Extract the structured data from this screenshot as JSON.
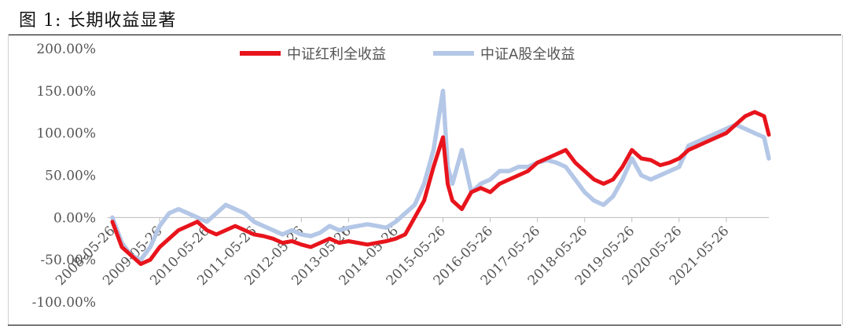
{
  "figure": {
    "title": "图 1:  长期收益显著"
  },
  "chart_data": {
    "type": "line",
    "ylim": [
      -100,
      200
    ],
    "y_ticks": [
      "200.00%",
      "150.00%",
      "100.00%",
      "50.00%",
      "0.00%",
      "-50.00%",
      "-100.00%"
    ],
    "y_tick_values": [
      200,
      150,
      100,
      50,
      0,
      -50,
      -100
    ],
    "x_ticks": [
      "2008-05-26",
      "2009-05-26",
      "2010-05-26",
      "2011-05-26",
      "2012-05-26",
      "2013-05-26",
      "2014-05-26",
      "2015-05-26",
      "2016-05-26",
      "2017-05-26",
      "2018-05-26",
      "2019-05-26",
      "2020-05-26",
      "2021-05-26"
    ],
    "legend_position": "top-center",
    "series": [
      {
        "name": "中证红利全收益",
        "color": "#e8141c",
        "x": [
          2008.4,
          2008.6,
          2008.8,
          2009.0,
          2009.2,
          2009.4,
          2009.6,
          2009.8,
          2010.0,
          2010.2,
          2010.4,
          2010.6,
          2010.8,
          2011.0,
          2011.2,
          2011.4,
          2011.6,
          2011.8,
          2012.0,
          2012.2,
          2012.4,
          2012.6,
          2012.8,
          2013.0,
          2013.2,
          2013.4,
          2013.6,
          2013.8,
          2014.0,
          2014.2,
          2014.4,
          2014.6,
          2014.8,
          2015.0,
          2015.2,
          2015.4,
          2015.5,
          2015.6,
          2015.8,
          2016.0,
          2016.2,
          2016.4,
          2016.6,
          2016.8,
          2017.0,
          2017.2,
          2017.4,
          2017.6,
          2017.8,
          2018.0,
          2018.2,
          2018.4,
          2018.6,
          2018.8,
          2019.0,
          2019.2,
          2019.4,
          2019.6,
          2019.8,
          2020.0,
          2020.2,
          2020.4,
          2020.6,
          2020.8,
          2021.0,
          2021.2,
          2021.4,
          2021.6,
          2021.8,
          2022.0,
          2022.2,
          2022.3
        ],
        "y": [
          -5,
          -35,
          -45,
          -55,
          -50,
          -35,
          -25,
          -15,
          -10,
          -5,
          -15,
          -20,
          -15,
          -10,
          -15,
          -20,
          -22,
          -25,
          -30,
          -28,
          -32,
          -35,
          -30,
          -25,
          -30,
          -28,
          -30,
          -32,
          -30,
          -28,
          -25,
          -20,
          0,
          20,
          60,
          95,
          40,
          20,
          10,
          30,
          35,
          30,
          40,
          45,
          50,
          55,
          65,
          70,
          75,
          80,
          65,
          55,
          45,
          40,
          45,
          60,
          80,
          70,
          68,
          62,
          65,
          70,
          80,
          85,
          90,
          95,
          100,
          110,
          120,
          125,
          120,
          98
        ]
      },
      {
        "name": "中证A股全收益",
        "color": "#b4c7e7",
        "x": [
          2008.4,
          2008.6,
          2008.8,
          2009.0,
          2009.2,
          2009.4,
          2009.6,
          2009.8,
          2010.0,
          2010.2,
          2010.4,
          2010.6,
          2010.8,
          2011.0,
          2011.2,
          2011.4,
          2011.6,
          2011.8,
          2012.0,
          2012.2,
          2012.4,
          2012.6,
          2012.8,
          2013.0,
          2013.2,
          2013.4,
          2013.6,
          2013.8,
          2014.0,
          2014.2,
          2014.4,
          2014.6,
          2014.8,
          2015.0,
          2015.2,
          2015.4,
          2015.5,
          2015.6,
          2015.8,
          2016.0,
          2016.2,
          2016.4,
          2016.6,
          2016.8,
          2017.0,
          2017.2,
          2017.4,
          2017.6,
          2017.8,
          2018.0,
          2018.2,
          2018.4,
          2018.6,
          2018.8,
          2019.0,
          2019.2,
          2019.4,
          2019.6,
          2019.8,
          2020.0,
          2020.2,
          2020.4,
          2020.6,
          2020.8,
          2021.0,
          2021.2,
          2021.4,
          2021.6,
          2021.8,
          2022.0,
          2022.2,
          2022.3
        ],
        "y": [
          0,
          -30,
          -45,
          -50,
          -35,
          -10,
          5,
          10,
          5,
          0,
          -5,
          5,
          15,
          10,
          5,
          -5,
          -10,
          -15,
          -20,
          -15,
          -20,
          -22,
          -18,
          -10,
          -15,
          -12,
          -10,
          -8,
          -10,
          -12,
          -5,
          5,
          15,
          40,
          80,
          150,
          60,
          40,
          80,
          30,
          40,
          45,
          55,
          55,
          60,
          60,
          65,
          68,
          65,
          60,
          45,
          30,
          20,
          15,
          25,
          45,
          70,
          50,
          45,
          50,
          55,
          60,
          85,
          90,
          95,
          100,
          105,
          110,
          105,
          100,
          95,
          70
        ]
      }
    ]
  }
}
